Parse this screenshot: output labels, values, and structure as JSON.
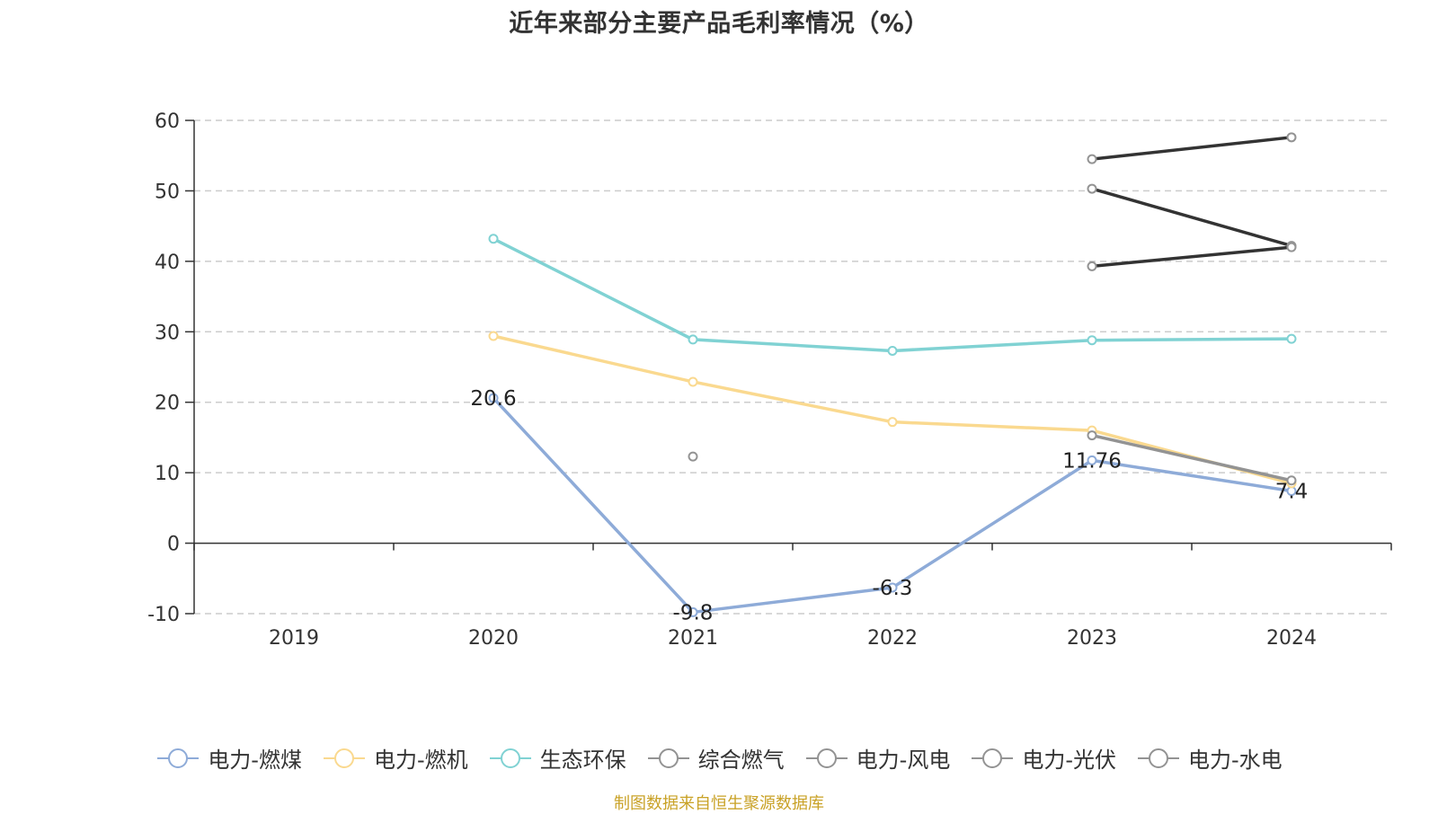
{
  "chart_data": {
    "type": "line",
    "title": "近年来部分主要产品毛利率情况（%）",
    "x": [
      "2019",
      "2020",
      "2021",
      "2022",
      "2023",
      "2024"
    ],
    "ylim": [
      -10,
      60
    ],
    "yticks": [
      -10,
      0,
      10,
      20,
      30,
      40,
      50,
      60
    ],
    "grid": true,
    "legend_position": "bottom",
    "series": [
      {
        "name": "电力-燃煤",
        "color": "#8eabd8",
        "values": [
          null,
          20.6,
          -9.8,
          -6.3,
          11.76,
          7.4
        ],
        "labels": [
          null,
          "20.6",
          "-9.8",
          "-6.3",
          "11.76",
          "7.4"
        ]
      },
      {
        "name": "电力-燃机",
        "color": "#fad98f",
        "values": [
          null,
          29.4,
          22.9,
          17.2,
          16.0,
          8.5
        ]
      },
      {
        "name": "生态环保",
        "color": "#80d2d3",
        "values": [
          null,
          43.2,
          28.9,
          27.3,
          28.8,
          29.0
        ]
      },
      {
        "name": "综合燃气",
        "color": "#939393",
        "values": [
          null,
          null,
          12.3,
          null,
          15.3,
          8.9
        ]
      },
      {
        "name": "电力-风电",
        "color": "#939393",
        "line_color": "#333333",
        "values": [
          null,
          null,
          null,
          null,
          54.5,
          57.6
        ]
      },
      {
        "name": "电力-光伏",
        "color": "#939393",
        "line_color": "#333333",
        "values": [
          null,
          null,
          null,
          null,
          50.3,
          42.2
        ]
      },
      {
        "name": "电力-水电",
        "color": "#939393",
        "line_color": "#333333",
        "values": [
          null,
          null,
          null,
          null,
          39.3,
          42.0
        ]
      }
    ]
  },
  "source_note": "制图数据来自恒生聚源数据库"
}
